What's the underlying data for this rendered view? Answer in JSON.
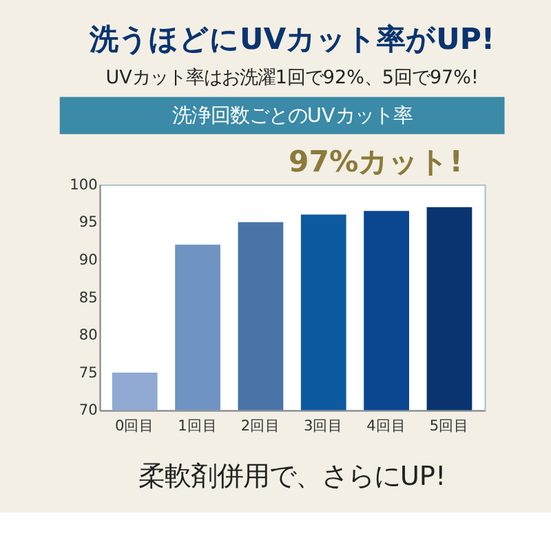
{
  "chart_data": {
    "type": "bar",
    "title": "洗うほどにUVカット率がUP!",
    "subtitle": "UVカット率はお洗濯1回で92%、5回で97%!",
    "categories": [
      "0回目",
      "1回目",
      "2回目",
      "3回目",
      "4回目",
      "5回目"
    ],
    "values": [
      75,
      92,
      95,
      96,
      96.5,
      97
    ],
    "colors": [
      "#8fa9d3",
      "#6f93c2",
      "#4a74a8",
      "#0e5aa0",
      "#0b4690",
      "#0a3470"
    ],
    "ylim": [
      70,
      100
    ],
    "yticks": [
      70,
      75,
      80,
      85,
      90,
      95,
      100
    ],
    "grid": false,
    "annotations": [
      "洗浄回数ごとのUVカット率",
      {
        "text": "97%カット!",
        "x": "5回目",
        "y": 97
      },
      "柔軟剤併用で、さらにUP!"
    ]
  }
}
